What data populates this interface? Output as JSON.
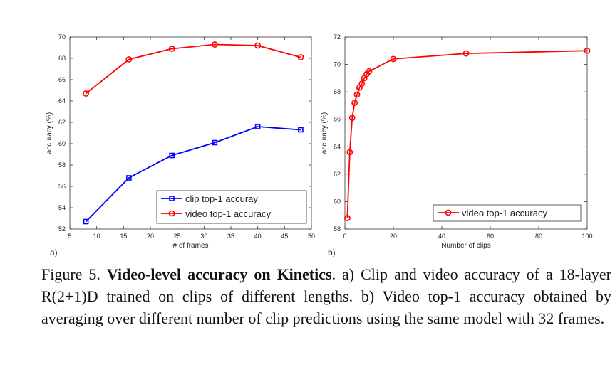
{
  "chart_data": [
    {
      "type": "line",
      "panel_label": "a)",
      "title": "",
      "xlabel": "# of frames",
      "ylabel": "accuracy (%)",
      "xlim": [
        5,
        50
      ],
      "ylim": [
        52,
        70
      ],
      "xticks": [
        5,
        10,
        15,
        20,
        25,
        30,
        35,
        40,
        45,
        50
      ],
      "yticks": [
        52,
        54,
        56,
        58,
        60,
        62,
        64,
        66,
        68,
        70
      ],
      "grid": false,
      "legend_position": "bottom-right",
      "x": [
        8,
        16,
        24,
        32,
        40,
        48
      ],
      "series": [
        {
          "name": "clip top-1 accuray",
          "color": "#0000ff",
          "marker": "square",
          "values": [
            52.7,
            56.8,
            58.9,
            60.1,
            61.6,
            61.3
          ]
        },
        {
          "name": "video top-1 accuracy",
          "color": "#ff0000",
          "marker": "circle",
          "values": [
            64.7,
            67.9,
            68.9,
            69.3,
            69.2,
            68.1
          ]
        }
      ]
    },
    {
      "type": "line",
      "panel_label": "b)",
      "title": "",
      "xlabel": "Number of clips",
      "ylabel": "accuracy (%)",
      "xlim": [
        0,
        100
      ],
      "ylim": [
        58,
        72
      ],
      "xticks": [
        0,
        20,
        40,
        60,
        80,
        100
      ],
      "yticks": [
        58,
        60,
        62,
        64,
        66,
        68,
        70,
        72
      ],
      "grid": false,
      "legend_position": "bottom-right",
      "x": [
        1,
        2,
        3,
        4,
        5,
        6,
        7,
        8,
        9,
        10,
        20,
        50,
        100
      ],
      "series": [
        {
          "name": "video top-1 accuracy",
          "color": "#ff0000",
          "marker": "circle",
          "values": [
            58.8,
            63.6,
            66.1,
            67.2,
            67.8,
            68.3,
            68.6,
            69.0,
            69.3,
            69.5,
            70.4,
            70.8,
            71.0
          ]
        }
      ]
    }
  ],
  "caption": {
    "figure_label": "Figure 5.",
    "bold_title": "Video-level accuracy on Kinetics",
    "text": ". a) Clip and video accuracy of a 18-layer R(2+1)D trained on clips of different lengths. b) Video top-1 accuracy obtained by averaging over different number of clip predictions using the same model with 32 frames."
  }
}
